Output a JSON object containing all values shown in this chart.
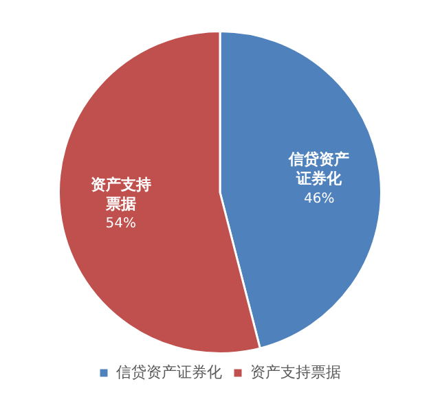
{
  "chart_data": {
    "type": "pie",
    "categories": [
      "信贷资产证券化",
      "资产支持票据"
    ],
    "values": [
      46,
      54
    ],
    "colors": [
      "#4f81bd",
      "#c0504d"
    ],
    "value_labels": [
      "46%",
      "54%"
    ],
    "legend": "bottom"
  }
}
